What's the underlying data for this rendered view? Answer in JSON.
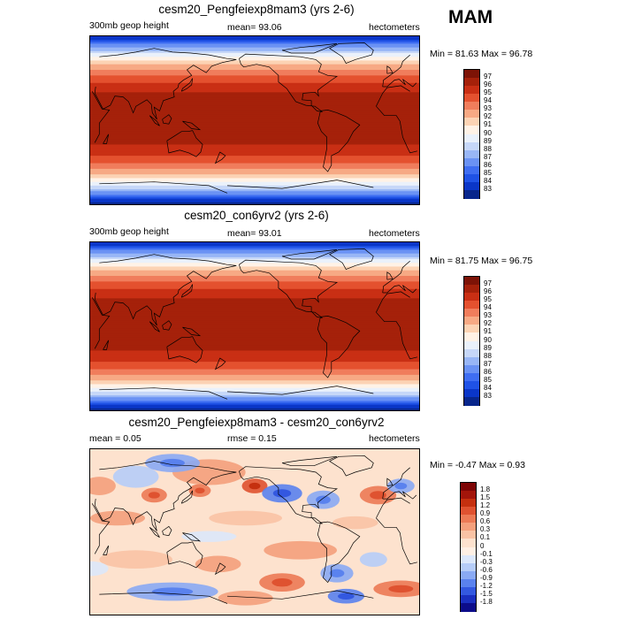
{
  "season": "MAM",
  "colors": {
    "abs_scale": [
      "#08268c",
      "#0a36c8",
      "#1f52e6",
      "#3f6ef2",
      "#6a92f4",
      "#98b6f6",
      "#c6d7f8",
      "#eaf1fb",
      "#fff2e6",
      "#fcd3b4",
      "#f7a984",
      "#f07d5c",
      "#e4512f",
      "#c92f14",
      "#a5210a",
      "#7d1306"
    ],
    "diff_scale": [
      "#0c0c8a",
      "#1a2fc0",
      "#3358e0",
      "#5a82ee",
      "#8aaaf4",
      "#b6cdf8",
      "#dce8fb",
      "#fff0e4",
      "#fde2ce",
      "#f9c3a5",
      "#f4a07c",
      "#ec7a55",
      "#df5230",
      "#c5300f",
      "#a3150a",
      "#7d0505"
    ]
  },
  "panels": [
    {
      "title": "cesm20_Pengfeiexp8mam3 (yrs 2-6)",
      "left_label": "300mb geop height",
      "center_label": "mean=  93.06",
      "right_label": "hectometers",
      "minmax": "Min =  81.63 Max =  96.78",
      "colorbar_labels": [
        "97",
        "96",
        "95",
        "94",
        "93",
        "92",
        "91",
        "90",
        "89",
        "88",
        "87",
        "86",
        "85",
        "84",
        "83"
      ],
      "chart_data": {
        "type": "heatmap",
        "field": "300mb geopotential height",
        "units": "hectometers",
        "mean": 93.06,
        "min": 81.63,
        "max": 96.78,
        "levels": [
          83,
          84,
          85,
          86,
          87,
          88,
          89,
          90,
          91,
          92,
          93,
          94,
          95,
          96,
          97
        ]
      }
    },
    {
      "title": "cesm20_con6yrv2 (yrs 2-6)",
      "left_label": "300mb geop height",
      "center_label": "mean=  93.01",
      "right_label": "hectometers",
      "minmax": "Min =  81.75 Max =  96.75",
      "colorbar_labels": [
        "97",
        "96",
        "95",
        "94",
        "93",
        "92",
        "91",
        "90",
        "89",
        "88",
        "87",
        "86",
        "85",
        "84",
        "83"
      ],
      "chart_data": {
        "type": "heatmap",
        "field": "300mb geopotential height",
        "units": "hectometers",
        "mean": 93.01,
        "min": 81.75,
        "max": 96.75,
        "levels": [
          83,
          84,
          85,
          86,
          87,
          88,
          89,
          90,
          91,
          92,
          93,
          94,
          95,
          96,
          97
        ]
      }
    },
    {
      "title": "cesm20_Pengfeiexp8mam3 - cesm20_con6yrv2",
      "left_label": "mean =   0.05",
      "center_label": "rmse =   0.15",
      "right_label": "hectometers",
      "minmax": "Min =  -0.47 Max =   0.93",
      "colorbar_labels": [
        "1.8",
        "1.5",
        "1.2",
        "0.9",
        "0.6",
        "0.3",
        "0.1",
        "0",
        "-0.1",
        "-0.3",
        "-0.6",
        "-0.9",
        "-1.2",
        "-1.5",
        "-1.8"
      ],
      "chart_data": {
        "type": "heatmap",
        "field": "300mb geopotential height difference",
        "units": "hectometers",
        "mean": 0.05,
        "rmse": 0.15,
        "min": -0.47,
        "max": 0.93,
        "levels": [
          -1.8,
          -1.5,
          -1.2,
          -0.9,
          -0.6,
          -0.3,
          -0.1,
          0,
          0.1,
          0.3,
          0.6,
          0.9,
          1.2,
          1.5,
          1.8
        ]
      }
    }
  ]
}
